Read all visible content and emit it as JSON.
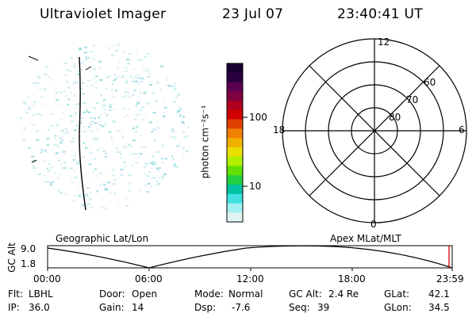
{
  "header": {
    "title": "Ultraviolet Imager",
    "date": "23 Jul 07",
    "time": "23:40:41 UT"
  },
  "colorbar": {
    "unit_label": "photon cm⁻²s⁻¹",
    "ticks": [
      "100",
      "10"
    ],
    "colors": [
      "#1a0030",
      "#2a0040",
      "#5a0050",
      "#800040",
      "#b00020",
      "#d00000",
      "#e04000",
      "#f08000",
      "#f0b000",
      "#e8e000",
      "#b0f000",
      "#60e000",
      "#20d040",
      "#00c0a0",
      "#40e0e0",
      "#a0f0f0",
      "#e0f4f4"
    ]
  },
  "polar_plot": {
    "mlt_labels": {
      "top": "12",
      "left": "18",
      "right": "6",
      "bottom": "0"
    },
    "lat_labels": [
      "60",
      "70",
      "80"
    ]
  },
  "timeline": {
    "left_title": "Geographic Lat/Lon",
    "right_title": "Apex  MLat/MLT",
    "axis_label": "GC Alt",
    "y_ticks": [
      "9.0",
      "1.8"
    ],
    "x_ticks": [
      "00:00",
      "06:00",
      "12:00",
      "18:00",
      "23:59"
    ],
    "current_time_color": "#d00000"
  },
  "status": {
    "filter_label": "Flt:",
    "filter_value": "LBHL",
    "ip_label": "IP:",
    "ip_value": "36.0",
    "door_label": "Door:",
    "door_value": "Open",
    "gain_label": "Gain:",
    "gain_value": "14",
    "mode_label": "Mode:",
    "mode_value": "Normal",
    "dsp_label": "Dsp:",
    "dsp_value": "-7.6",
    "gcalt_label": "GC Alt:",
    "gcalt_value": "2.4 Re",
    "seq_label": "Seq:",
    "seq_value": "39",
    "glat_label": "GLat:",
    "glat_value": "42.1",
    "glon_label": "GLon:",
    "glon_value": "34.5"
  }
}
